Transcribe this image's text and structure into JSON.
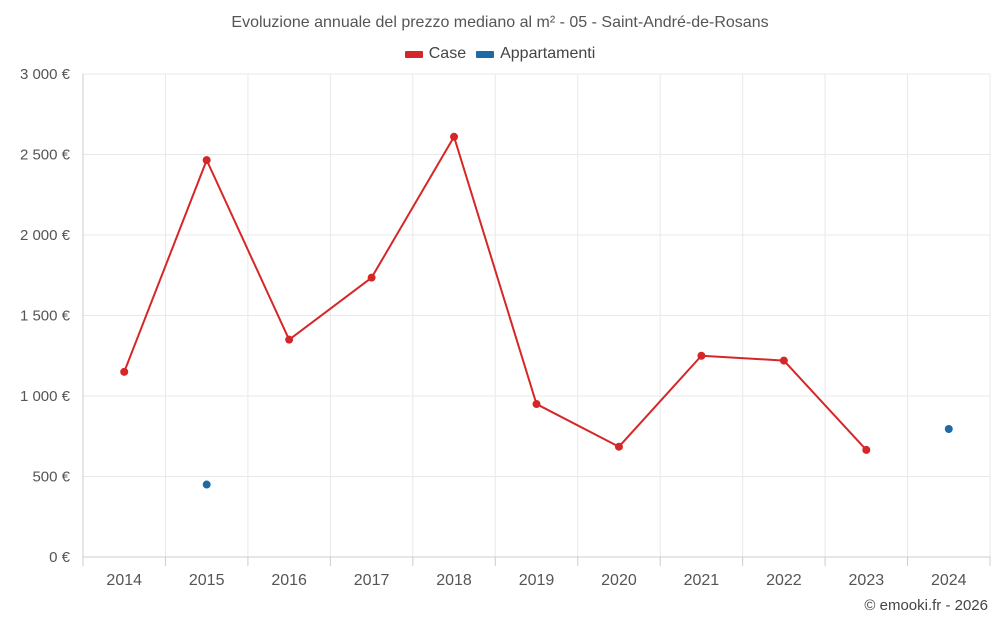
{
  "chart_data": {
    "type": "line",
    "title": "Evoluzione annuale del prezzo mediano al m² - 05 - Saint-André-de-Rosans",
    "categories": [
      "2014",
      "2015",
      "2016",
      "2017",
      "2018",
      "2019",
      "2020",
      "2021",
      "2022",
      "2023",
      "2024"
    ],
    "y_tick_labels": [
      "0 €",
      "500 €",
      "1 000 €",
      "1 500 €",
      "2 000 €",
      "2 500 €",
      "3 000 €"
    ],
    "y_ticks": [
      0,
      500,
      1000,
      1500,
      2000,
      2500,
      3000
    ],
    "ylim": [
      0,
      3000
    ],
    "xlabel": "",
    "ylabel": "",
    "grid": true,
    "legend_position": "top-center",
    "series": [
      {
        "name": "Case",
        "color": "#d62728",
        "values": [
          1150,
          2465,
          1350,
          1735,
          2610,
          950,
          685,
          1250,
          1220,
          665,
          null
        ]
      },
      {
        "name": "Appartamenti",
        "color": "#1f6aa5",
        "values": [
          null,
          450,
          null,
          null,
          null,
          null,
          null,
          null,
          null,
          null,
          795
        ]
      }
    ]
  },
  "credit": "© emooki.fr - 2026"
}
